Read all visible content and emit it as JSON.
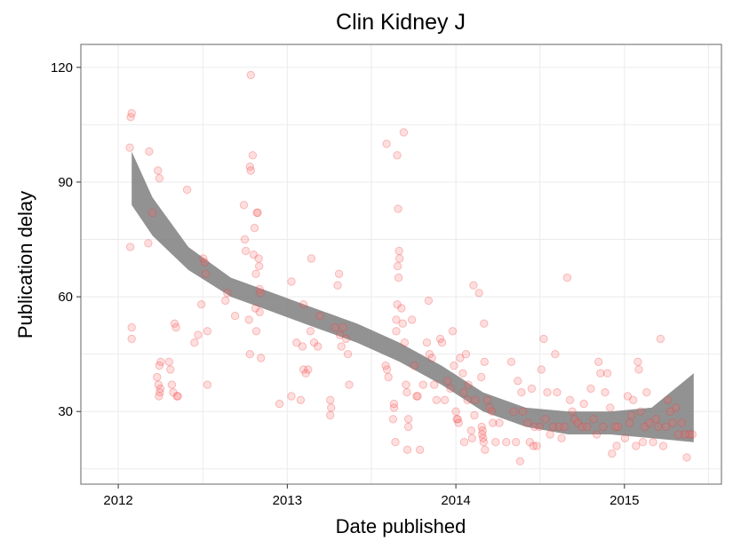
{
  "chart_data": {
    "type": "scatter",
    "title": "Clin Kidney J",
    "xlabel": "Date published",
    "ylabel": "Publication delay",
    "xlim": [
      "2011-10-12",
      "2015-07-30"
    ],
    "ylim": [
      11,
      126
    ],
    "x_ticks": [
      "2012",
      "2013",
      "2014",
      "2015"
    ],
    "y_ticks": [
      30,
      60,
      90,
      120
    ],
    "grid": true,
    "colors": {
      "points": "#ff0000",
      "band": "#7f7f7f",
      "frame": "#7f7f7f"
    },
    "series": [
      {
        "points": [
          [
            "2012-01-28",
            107
          ],
          [
            "2012-01-30",
            108
          ],
          [
            "2012-01-26",
            99
          ],
          [
            "2012-01-27",
            73
          ],
          [
            "2012-01-30",
            52
          ],
          [
            "2012-01-30",
            49
          ],
          [
            "2012-03-08",
            98
          ],
          [
            "2012-03-15",
            82
          ],
          [
            "2012-03-06",
            74
          ],
          [
            "2012-03-27",
            93
          ],
          [
            "2012-03-30",
            91
          ],
          [
            "2012-03-25",
            39
          ],
          [
            "2012-03-28",
            37
          ],
          [
            "2012-03-31",
            35
          ],
          [
            "2012-04-02",
            43
          ],
          [
            "2012-04-20",
            43
          ],
          [
            "2012-04-23",
            41
          ],
          [
            "2012-04-26",
            37
          ],
          [
            "2012-04-29",
            35
          ],
          [
            "2012-05-02",
            53
          ],
          [
            "2012-05-05",
            52
          ],
          [
            "2012-05-07",
            34
          ],
          [
            "2012-05-09",
            34
          ],
          [
            "2012-03-30",
            42
          ],
          [
            "2012-04-01",
            36
          ],
          [
            "2012-03-29",
            34
          ],
          [
            "2012-05-29",
            88
          ],
          [
            "2012-06-14",
            48
          ],
          [
            "2012-06-22",
            50
          ],
          [
            "2012-07-03",
            70
          ],
          [
            "2012-07-06",
            69
          ],
          [
            "2012-07-08",
            66
          ],
          [
            "2012-07-12",
            51
          ],
          [
            "2012-07-12",
            37
          ],
          [
            "2012-06-29",
            58
          ],
          [
            "2012-08-20",
            59
          ],
          [
            "2012-08-24",
            61
          ],
          [
            "2012-09-10",
            55
          ],
          [
            "2012-09-29",
            84
          ],
          [
            "2012-10-01",
            75
          ],
          [
            "2012-10-03",
            72
          ],
          [
            "2012-10-14",
            118
          ],
          [
            "2012-10-12",
            94
          ],
          [
            "2012-10-14",
            93
          ],
          [
            "2012-10-18",
            97
          ],
          [
            "2012-10-22",
            78
          ],
          [
            "2012-10-20",
            71
          ],
          [
            "2012-10-25",
            66
          ],
          [
            "2012-10-27",
            82
          ],
          [
            "2012-10-29",
            82
          ],
          [
            "2012-10-31",
            70
          ],
          [
            "2012-11-01",
            68
          ],
          [
            "2012-11-02",
            62
          ],
          [
            "2012-11-04",
            61
          ],
          [
            "2012-10-10",
            54
          ],
          [
            "2012-10-24",
            57
          ],
          [
            "2012-11-02",
            56
          ],
          [
            "2012-10-26",
            51
          ],
          [
            "2012-10-12",
            45
          ],
          [
            "2012-11-05",
            44
          ],
          [
            "2012-12-15",
            32
          ],
          [
            "2013-01-10",
            64
          ],
          [
            "2013-01-10",
            34
          ],
          [
            "2013-01-21",
            48
          ],
          [
            "2013-01-30",
            33
          ],
          [
            "2013-02-05",
            58
          ],
          [
            "2013-02-03",
            47
          ],
          [
            "2013-02-05",
            41
          ],
          [
            "2013-02-10",
            40
          ],
          [
            "2013-02-15",
            41
          ],
          [
            "2013-02-20",
            51
          ],
          [
            "2013-02-22",
            70
          ],
          [
            "2013-02-28",
            48
          ],
          [
            "2013-03-08",
            47
          ],
          [
            "2013-03-12",
            55
          ],
          [
            "2013-04-04",
            33
          ],
          [
            "2013-04-06",
            31
          ],
          [
            "2013-04-04",
            29
          ],
          [
            "2013-04-14",
            52
          ],
          [
            "2013-04-20",
            63
          ],
          [
            "2013-04-23",
            66
          ],
          [
            "2013-04-25",
            50
          ],
          [
            "2013-04-28",
            47
          ],
          [
            "2013-05-02",
            52
          ],
          [
            "2013-05-12",
            45
          ],
          [
            "2013-05-15",
            37
          ],
          [
            "2013-05-08",
            49
          ],
          [
            "2013-08-04",
            100
          ],
          [
            "2013-08-02",
            42
          ],
          [
            "2013-08-05",
            41
          ],
          [
            "2013-08-08",
            39
          ],
          [
            "2013-08-20",
            31
          ],
          [
            "2013-08-18",
            28
          ],
          [
            "2013-08-23",
            22
          ],
          [
            "2013-08-20",
            32
          ],
          [
            "2013-08-25",
            51
          ],
          [
            "2013-08-25",
            54
          ],
          [
            "2013-08-27",
            58
          ],
          [
            "2013-08-30",
            65
          ],
          [
            "2013-08-28",
            68
          ],
          [
            "2013-09-01",
            70
          ],
          [
            "2013-08-31",
            72
          ],
          [
            "2013-08-29",
            83
          ],
          [
            "2013-08-27",
            97
          ],
          [
            "2013-09-10",
            103
          ],
          [
            "2013-09-05",
            57
          ],
          [
            "2013-09-08",
            53
          ],
          [
            "2013-09-12",
            48
          ],
          [
            "2013-09-15",
            37
          ],
          [
            "2013-09-17",
            35
          ],
          [
            "2013-09-20",
            28
          ],
          [
            "2013-09-20",
            26
          ],
          [
            "2013-09-18",
            20
          ],
          [
            "2013-09-28",
            54
          ],
          [
            "2013-10-03",
            42
          ],
          [
            "2013-10-08",
            34
          ],
          [
            "2013-10-10",
            34
          ],
          [
            "2013-10-15",
            20
          ],
          [
            "2013-10-22",
            37
          ],
          [
            "2013-10-30",
            48
          ],
          [
            "2013-11-03",
            59
          ],
          [
            "2013-11-05",
            45
          ],
          [
            "2013-11-10",
            44
          ],
          [
            "2013-11-15",
            37
          ],
          [
            "2013-11-20",
            33
          ],
          [
            "2013-11-28",
            49
          ],
          [
            "2013-12-02",
            48
          ],
          [
            "2013-12-08",
            33
          ],
          [
            "2013-12-14",
            38
          ],
          [
            "2013-12-20",
            36
          ],
          [
            "2013-12-25",
            51
          ],
          [
            "2013-12-28",
            42
          ],
          [
            "2014-01-01",
            30
          ],
          [
            "2014-01-03",
            28
          ],
          [
            "2014-01-05",
            28
          ],
          [
            "2014-01-07",
            27
          ],
          [
            "2014-01-10",
            44
          ],
          [
            "2014-01-16",
            40
          ],
          [
            "2014-01-18",
            35
          ],
          [
            "2014-01-19",
            22
          ],
          [
            "2014-01-23",
            45
          ],
          [
            "2014-01-26",
            33
          ],
          [
            "2014-01-28",
            37
          ],
          [
            "2014-02-03",
            25
          ],
          [
            "2014-02-05",
            23
          ],
          [
            "2014-02-08",
            63
          ],
          [
            "2014-02-10",
            29
          ],
          [
            "2014-02-12",
            33
          ],
          [
            "2014-02-20",
            61
          ],
          [
            "2014-02-25",
            39
          ],
          [
            "2014-02-26",
            26
          ],
          [
            "2014-02-27",
            24
          ],
          [
            "2014-02-28",
            25
          ],
          [
            "2014-03-01",
            23
          ],
          [
            "2014-03-02",
            22
          ],
          [
            "2014-03-05",
            20
          ],
          [
            "2014-03-03",
            53
          ],
          [
            "2014-03-04",
            43
          ],
          [
            "2014-03-10",
            33
          ],
          [
            "2014-03-15",
            31
          ],
          [
            "2014-03-20",
            30
          ],
          [
            "2014-03-22",
            27
          ],
          [
            "2014-03-28",
            22
          ],
          [
            "2014-04-05",
            27
          ],
          [
            "2014-04-20",
            22
          ],
          [
            "2014-05-01",
            43
          ],
          [
            "2014-05-06",
            30
          ],
          [
            "2014-05-11",
            22
          ],
          [
            "2014-05-15",
            38
          ],
          [
            "2014-05-20",
            17
          ],
          [
            "2014-05-23",
            35
          ],
          [
            "2014-05-26",
            30
          ],
          [
            "2014-06-05",
            27
          ],
          [
            "2014-06-10",
            22
          ],
          [
            "2014-06-14",
            36
          ],
          [
            "2014-06-18",
            21
          ],
          [
            "2014-06-20",
            26
          ],
          [
            "2014-06-25",
            21
          ],
          [
            "2014-07-01",
            26
          ],
          [
            "2014-07-05",
            41
          ],
          [
            "2014-07-10",
            49
          ],
          [
            "2014-07-14",
            28
          ],
          [
            "2014-07-18",
            35
          ],
          [
            "2014-07-24",
            24
          ],
          [
            "2014-07-30",
            26
          ],
          [
            "2014-08-04",
            45
          ],
          [
            "2014-08-08",
            35
          ],
          [
            "2014-08-12",
            26
          ],
          [
            "2014-08-18",
            23
          ],
          [
            "2014-08-24",
            26
          ],
          [
            "2014-08-30",
            65
          ],
          [
            "2014-09-05",
            33
          ],
          [
            "2014-09-10",
            30
          ],
          [
            "2014-09-15",
            28
          ],
          [
            "2014-09-22",
            27
          ],
          [
            "2014-10-01",
            26
          ],
          [
            "2014-10-05",
            32
          ],
          [
            "2014-10-12",
            26
          ],
          [
            "2014-10-20",
            36
          ],
          [
            "2014-10-26",
            28
          ],
          [
            "2014-11-02",
            24
          ],
          [
            "2014-11-06",
            43
          ],
          [
            "2014-11-10",
            40
          ],
          [
            "2014-11-16",
            26
          ],
          [
            "2014-11-20",
            35
          ],
          [
            "2014-11-25",
            40
          ],
          [
            "2014-12-01",
            31
          ],
          [
            "2014-12-05",
            19
          ],
          [
            "2014-12-12",
            26
          ],
          [
            "2014-12-15",
            21
          ],
          [
            "2014-12-18",
            26
          ],
          [
            "2015-01-02",
            23
          ],
          [
            "2015-01-08",
            34
          ],
          [
            "2015-01-12",
            27
          ],
          [
            "2015-01-16",
            29
          ],
          [
            "2015-01-20",
            33
          ],
          [
            "2015-01-26",
            21
          ],
          [
            "2015-01-30",
            43
          ],
          [
            "2015-02-01",
            41
          ],
          [
            "2015-02-05",
            30
          ],
          [
            "2015-02-10",
            22
          ],
          [
            "2015-02-14",
            26
          ],
          [
            "2015-02-18",
            35
          ],
          [
            "2015-02-24",
            27
          ],
          [
            "2015-03-04",
            22
          ],
          [
            "2015-03-10",
            28
          ],
          [
            "2015-03-15",
            26
          ],
          [
            "2015-03-20",
            49
          ],
          [
            "2015-03-26",
            21
          ],
          [
            "2015-04-01",
            26
          ],
          [
            "2015-04-05",
            33
          ],
          [
            "2015-04-10",
            30
          ],
          [
            "2015-04-15",
            27
          ],
          [
            "2015-04-22",
            31
          ],
          [
            "2015-04-28",
            24
          ],
          [
            "2015-05-05",
            27
          ],
          [
            "2015-05-12",
            24
          ],
          [
            "2015-05-16",
            18
          ],
          [
            "2015-05-22",
            24
          ],
          [
            "2015-05-28",
            24
          ]
        ]
      }
    ],
    "band": {
      "x": [
        "2012-01-30",
        "2012-03-15",
        "2012-06-01",
        "2012-09-01",
        "2012-12-01",
        "2013-03-01",
        "2013-06-01",
        "2013-09-01",
        "2013-12-01",
        "2014-03-01",
        "2014-06-01",
        "2014-09-01",
        "2014-12-01",
        "2015-03-01",
        "2015-05-31"
      ],
      "upper": [
        98,
        86,
        73,
        65,
        61,
        57,
        53,
        48,
        42,
        35,
        31,
        30,
        30,
        31,
        40
      ],
      "lower": [
        84,
        76,
        67,
        60,
        56,
        52,
        48,
        43,
        37,
        30,
        26,
        24,
        24,
        23,
        22
      ]
    }
  }
}
